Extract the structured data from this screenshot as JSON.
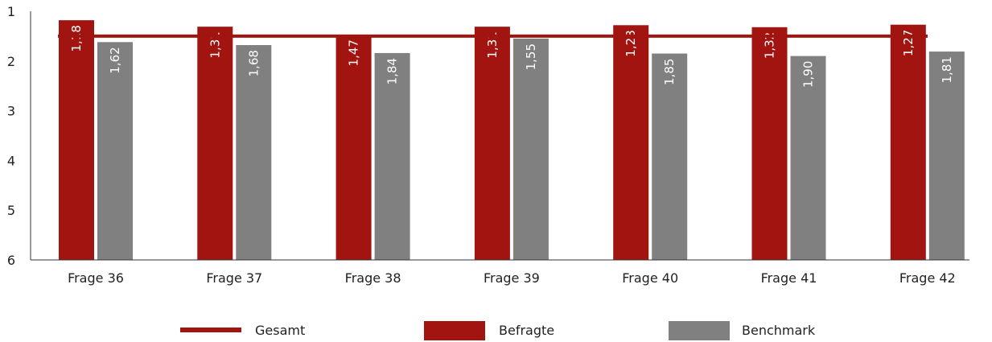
{
  "chart_data": {
    "type": "bar",
    "categories": [
      "Frage 36",
      "Frage 37",
      "Frage 38",
      "Frage 39",
      "Frage 40",
      "Frage 41",
      "Frage 42"
    ],
    "series": [
      {
        "name": "Befragte",
        "color": "#a11410",
        "values": [
          1.18,
          1.31,
          1.47,
          1.31,
          1.28,
          1.32,
          1.27
        ],
        "labels": [
          "1,18",
          "1,31",
          "1,47",
          "1,31",
          "1,28",
          "1,32",
          "1,27"
        ]
      },
      {
        "name": "Benchmark",
        "color": "#808080",
        "values": [
          1.62,
          1.68,
          1.84,
          1.55,
          1.85,
          1.9,
          1.81
        ],
        "labels": [
          "1,62",
          "1,68",
          "1,84",
          "1,55",
          "1,85",
          "1,90",
          "1,81"
        ]
      }
    ],
    "reference_line": {
      "name": "Gesamt",
      "value": 1.5,
      "color": "#a11410"
    },
    "yticks": [
      "1",
      "2",
      "3",
      "4",
      "5",
      "6"
    ],
    "ylim": [
      1,
      6
    ],
    "y_inverted": true,
    "grid": false,
    "legend": {
      "position": "bottom",
      "items": [
        "Gesamt",
        "Befragte",
        "Benchmark"
      ]
    },
    "title": "",
    "xlabel": "",
    "ylabel": ""
  }
}
